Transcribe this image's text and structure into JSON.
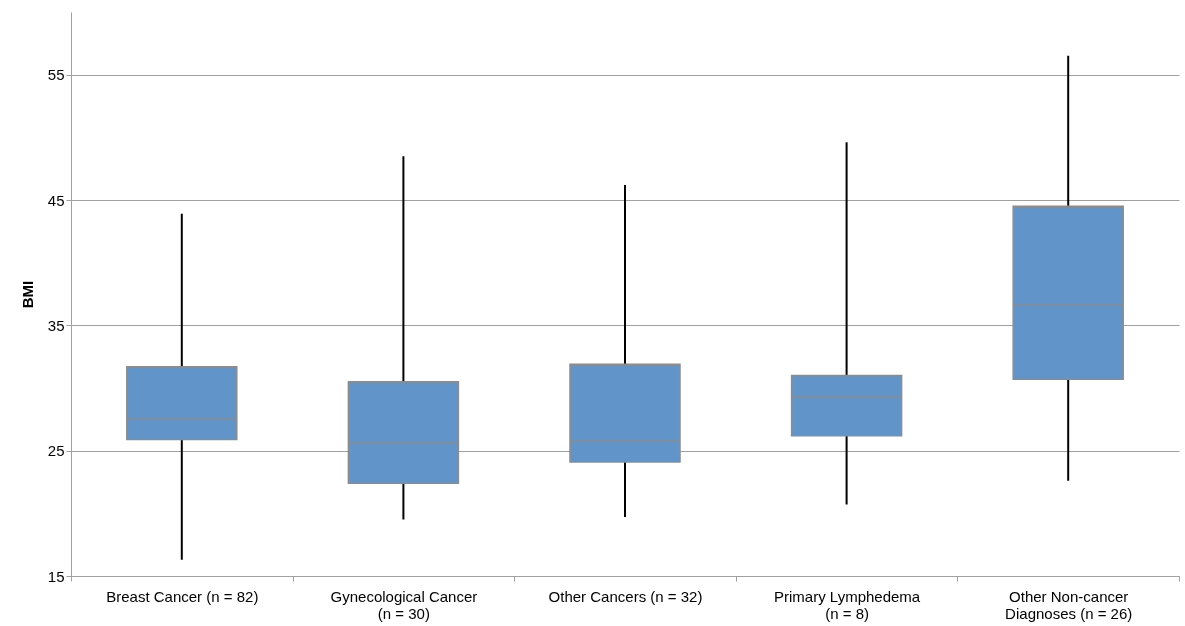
{
  "chart_data": {
    "type": "box",
    "ylabel": "BMI",
    "categories": [
      "Breast Cancer (n = 82)",
      "Gynecological Cancer\n(n = 30)",
      "Other Cancers (n = 32)",
      "Primary Lymphedema\n(n = 8)",
      "Other Non-cancer\nDiagnoses (n = 26)"
    ],
    "series": [
      {
        "color": "#6195c9",
        "boxes": [
          {
            "low": 16.3,
            "q1": 25.9,
            "median": 27.6,
            "q3": 31.7,
            "high": 43.9
          },
          {
            "low": 19.5,
            "q1": 22.4,
            "median": 25.7,
            "q3": 30.5,
            "high": 48.5
          },
          {
            "low": 19.7,
            "q1": 24.1,
            "median": 25.8,
            "q3": 31.9,
            "high": 46.2
          },
          {
            "low": 20.7,
            "q1": 26.2,
            "median": 29.3,
            "q3": 31.0,
            "high": 49.6
          },
          {
            "low": 22.6,
            "q1": 30.7,
            "median": 36.7,
            "q3": 44.5,
            "high": 56.5
          }
        ]
      }
    ],
    "ylim": [
      15,
      60
    ],
    "yticks": [
      15,
      25,
      35,
      45,
      55
    ],
    "grid": "y"
  }
}
